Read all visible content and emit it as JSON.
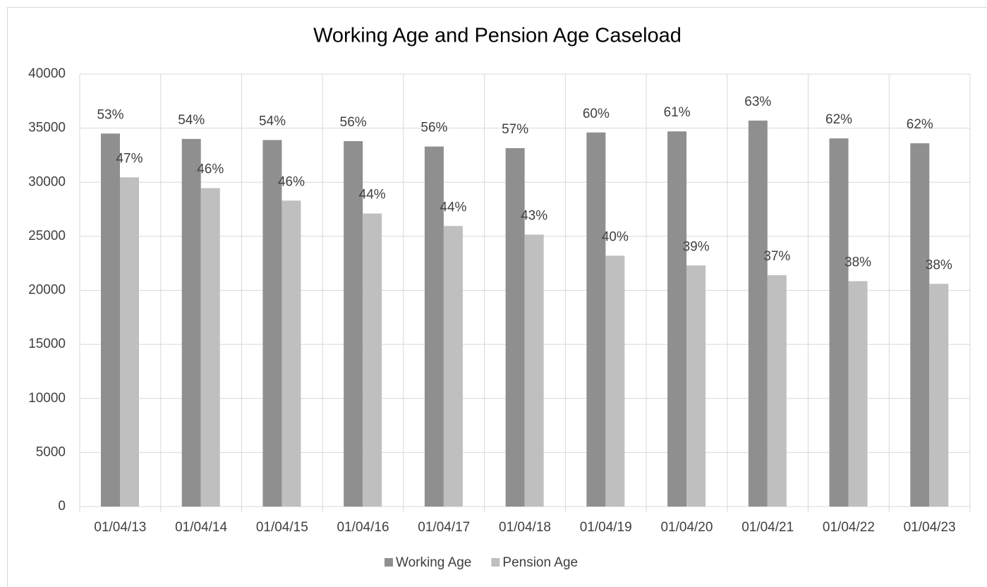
{
  "chart_data": {
    "type": "bar",
    "title": "Working Age and Pension Age Caseload",
    "categories": [
      "01/04/13",
      "01/04/14",
      "01/04/15",
      "01/04/16",
      "01/04/17",
      "01/04/18",
      "01/04/19",
      "01/04/20",
      "01/04/21",
      "01/04/22",
      "01/04/23"
    ],
    "series": [
      {
        "name": "Working Age",
        "color": "#8f8f8f",
        "values": [
          34500,
          34000,
          33900,
          33800,
          33300,
          33150,
          34600,
          34700,
          35700,
          34050,
          33600
        ],
        "data_labels": [
          "53%",
          "54%",
          "54%",
          "56%",
          "56%",
          "57%",
          "60%",
          "61%",
          "63%",
          "62%",
          "62%"
        ]
      },
      {
        "name": "Pension Age",
        "color": "#bfbfbf",
        "values": [
          30450,
          29450,
          28300,
          27100,
          25950,
          25150,
          23200,
          22300,
          21400,
          20850,
          20600
        ],
        "data_labels": [
          "47%",
          "46%",
          "46%",
          "44%",
          "44%",
          "43%",
          "40%",
          "39%",
          "37%",
          "38%",
          "38%"
        ]
      }
    ],
    "ylim": [
      0,
      40000
    ],
    "yticks": [
      0,
      5000,
      10000,
      15000,
      20000,
      25000,
      30000,
      35000,
      40000
    ],
    "grid": true,
    "legend": "bottom"
  }
}
